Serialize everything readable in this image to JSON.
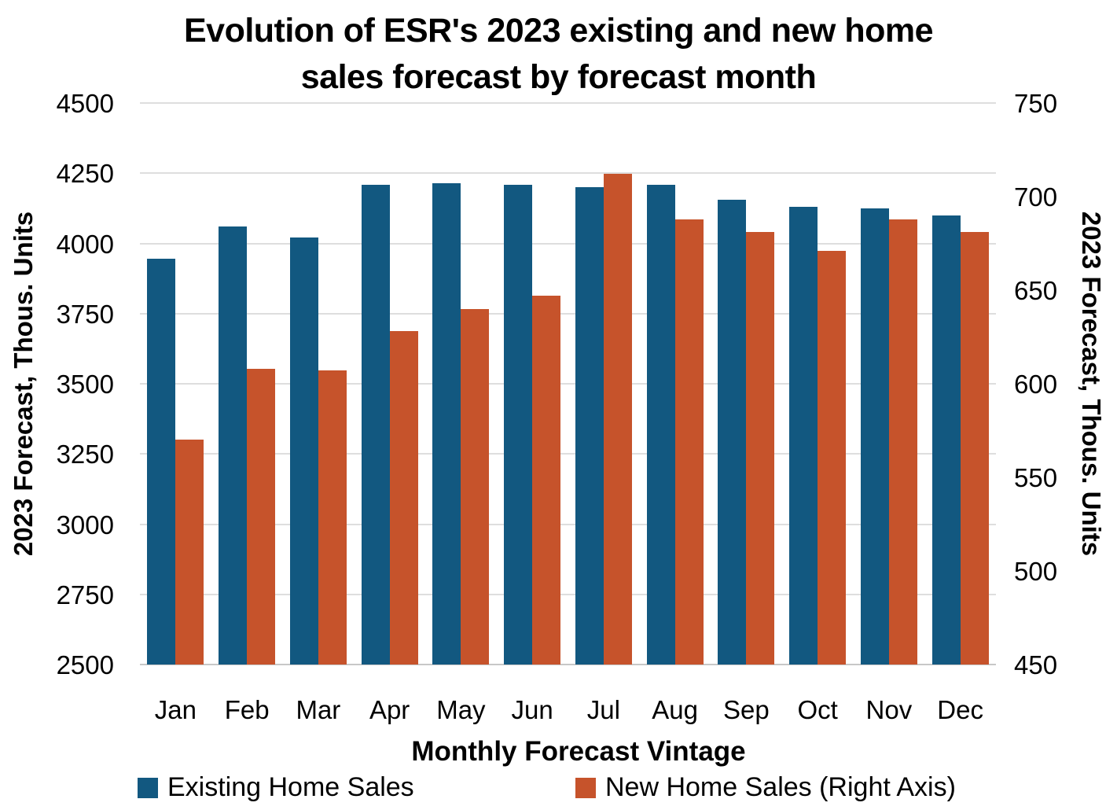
{
  "chart_data": {
    "type": "bar",
    "title_line1": "Evolution of ESR's 2023 existing and new home",
    "title_line2": "sales forecast by forecast month",
    "xlabel": "Monthly Forecast Vintage",
    "categories": [
      "Jan",
      "Feb",
      "Mar",
      "Apr",
      "May",
      "Jun",
      "Jul",
      "Aug",
      "Sep",
      "Oct",
      "Nov",
      "Dec"
    ],
    "series": [
      {
        "name": "Existing Home Sales",
        "axis": "left",
        "color": "#125880",
        "values": [
          3945,
          4060,
          4020,
          4210,
          4215,
          4210,
          4200,
          4210,
          4155,
          4130,
          4125,
          4100
        ]
      },
      {
        "name": "New Home Sales (Right Axis)",
        "axis": "right",
        "color": "#c6532b",
        "values": [
          570,
          608,
          607,
          628,
          640,
          647,
          712,
          688,
          681,
          671,
          688,
          681
        ]
      }
    ],
    "left_axis": {
      "label": "2023 Forecast, Thous. Units",
      "min": 2500,
      "max": 4500,
      "ticks": [
        4500,
        4250,
        4000,
        3750,
        3500,
        3250,
        3000,
        2750,
        2500
      ]
    },
    "right_axis": {
      "label": "2023 Forecast, Thous. Units",
      "min": 450,
      "max": 750,
      "ticks": [
        750,
        700,
        650,
        600,
        550,
        500,
        450
      ]
    },
    "grid": "horizontal",
    "legend_position": "bottom"
  }
}
